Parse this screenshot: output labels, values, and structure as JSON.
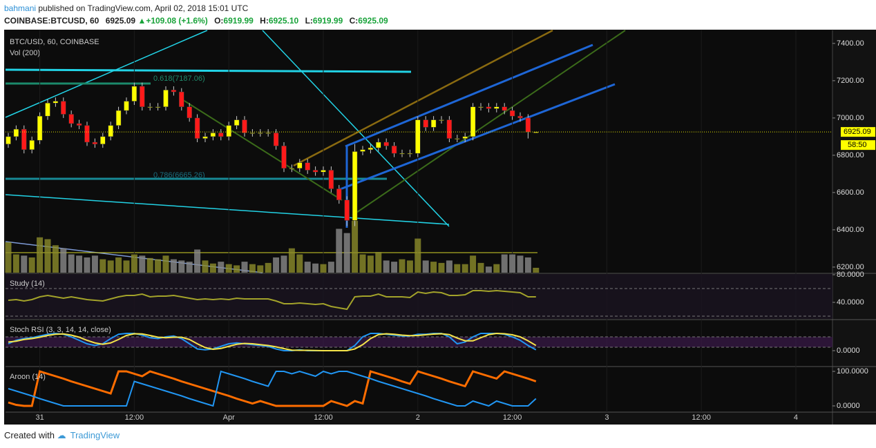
{
  "header": {
    "author": "bahmani",
    "published": "published on TradingView.com, April 02, 2018 15:01 UTC",
    "symbol": "COINBASE:BTCUSD, 60",
    "price": "6925.09",
    "change": "+109.08 (+1.6%)",
    "ohlc": [
      {
        "label": "O:",
        "value": "6919.99"
      },
      {
        "label": "H:",
        "value": "6925.10"
      },
      {
        "label": "L:",
        "value": "6919.99"
      },
      {
        "label": "C:",
        "value": "6925.09"
      }
    ]
  },
  "footer": {
    "created": "Created with",
    "brand": "TradingView"
  },
  "chart_data": [
    {
      "type": "candlestick",
      "title": "BTC/USD, 60, COINBASE",
      "volume_label": "Vol (200)",
      "up_color": "#ffff00",
      "down_color": "#ff1a1a",
      "volume_up_color": "#8c8c2a",
      "volume_down_color": "#8a8a8a",
      "last_price_label": "6925.09",
      "countdown": "58:50",
      "annotations": [
        "0.618(7187.06)",
        "0.786(6665.26)"
      ],
      "xlim": [
        -0.35,
        104.65
      ],
      "xticks": [
        {
          "value": 4,
          "label": "31"
        },
        {
          "value": 16,
          "label": "12:00"
        },
        {
          "value": 28,
          "label": "Apr"
        },
        {
          "value": 40,
          "label": "12:00"
        },
        {
          "value": 52,
          "label": "2"
        },
        {
          "value": 64,
          "label": "12:00"
        },
        {
          "value": 76,
          "label": "3"
        },
        {
          "value": 88,
          "label": "12:00"
        },
        {
          "value": 100,
          "label": "4"
        }
      ],
      "ylim": [
        6170,
        7470
      ],
      "yticks": [
        {
          "value": 6200,
          "label": "6200.00"
        },
        {
          "value": 6400,
          "label": "6400.00"
        },
        {
          "value": 6600,
          "label": "6600.00"
        },
        {
          "value": 6800,
          "label": "6800.00"
        },
        {
          "value": 7000,
          "label": "7000.00"
        },
        {
          "value": 7200,
          "label": "7200.00"
        },
        {
          "value": 7400,
          "label": "7400.00"
        }
      ],
      "open": [
        6860,
        6900,
        6940,
        6830,
        6880,
        7010,
        7080,
        7090,
        7020,
        6970,
        6960,
        6870,
        6860,
        6900,
        6960,
        7040,
        7090,
        7170,
        7060,
        7060,
        7060,
        7150,
        7140,
        7060,
        7000,
        6890,
        6900,
        6920,
        6900,
        6960,
        6990,
        6920,
        6920,
        6920,
        6920,
        6850,
        6730,
        6730,
        6760,
        6720,
        6710,
        6720,
        6620,
        6560,
        6450,
        6820,
        6830,
        6840,
        6870,
        6850,
        6810,
        6810,
        6810,
        6990,
        6950,
        6990,
        6990,
        6890,
        6890,
        6900,
        7060,
        7060,
        7050,
        7060,
        7040,
        7010,
        7000,
        6919.99
      ],
      "high": [
        6920,
        6960,
        6960,
        6900,
        7030,
        7100,
        7110,
        7110,
        7040,
        6990,
        6980,
        6890,
        6920,
        6980,
        7060,
        7110,
        7190,
        7190,
        7080,
        7080,
        7170,
        7170,
        7160,
        7080,
        7020,
        6920,
        6940,
        6940,
        6980,
        7010,
        7010,
        6940,
        6940,
        6940,
        6940,
        6870,
        6750,
        6780,
        6780,
        6740,
        6740,
        6740,
        6640,
        6580,
        6860,
        6850,
        6860,
        6890,
        6890,
        6870,
        6830,
        6830,
        7010,
        7010,
        7010,
        7010,
        7010,
        6910,
        6920,
        7080,
        7080,
        7080,
        7080,
        7080,
        7060,
        7030,
        7020,
        6925.1
      ],
      "low": [
        6840,
        6880,
        6810,
        6810,
        6860,
        6990,
        7060,
        7000,
        6950,
        6940,
        6850,
        6840,
        6840,
        6880,
        6940,
        7020,
        7070,
        7040,
        7040,
        7040,
        7040,
        7120,
        7040,
        6980,
        6870,
        6870,
        6880,
        6880,
        6880,
        6940,
        6900,
        6900,
        6900,
        6900,
        6830,
        6710,
        6710,
        6710,
        6700,
        6690,
        6690,
        6600,
        6540,
        6420,
        6420,
        6800,
        6810,
        6820,
        6830,
        6790,
        6790,
        6790,
        6790,
        6930,
        6930,
        6970,
        6870,
        6870,
        6870,
        6880,
        7040,
        7030,
        7030,
        7020,
        6990,
        6980,
        6890,
        6919.99
      ],
      "close": [
        6900,
        6940,
        6830,
        6880,
        7010,
        7080,
        7090,
        7020,
        6970,
        6960,
        6870,
        6860,
        6900,
        6960,
        7040,
        7090,
        7170,
        7060,
        7060,
        7060,
        7150,
        7140,
        7060,
        7000,
        6890,
        6900,
        6920,
        6900,
        6960,
        6990,
        6920,
        6920,
        6920,
        6920,
        6850,
        6730,
        6730,
        6760,
        6720,
        6710,
        6720,
        6620,
        6560,
        6450,
        6820,
        6830,
        6840,
        6870,
        6850,
        6810,
        6810,
        6810,
        6990,
        6950,
        6990,
        6990,
        6890,
        6890,
        6900,
        7060,
        7060,
        7050,
        7060,
        7040,
        7010,
        7000,
        6925,
        6925.09
      ],
      "volume": [
        50,
        30,
        28,
        25,
        58,
        55,
        45,
        40,
        30,
        28,
        25,
        28,
        22,
        20,
        25,
        20,
        30,
        28,
        24,
        22,
        28,
        22,
        20,
        18,
        38,
        20,
        15,
        18,
        14,
        12,
        18,
        14,
        12,
        16,
        25,
        28,
        40,
        30,
        18,
        15,
        14,
        18,
        72,
        65,
        85,
        30,
        28,
        34,
        20,
        18,
        22,
        20,
        56,
        20,
        18,
        16,
        20,
        14,
        14,
        28,
        16,
        10,
        14,
        30,
        30,
        28,
        25,
        8
      ]
    },
    {
      "type": "line",
      "title": "Study (14)",
      "ylim": [
        16,
        81
      ],
      "yticks": [
        {
          "value": 40,
          "label": "40.0000"
        },
        {
          "value": 80,
          "label": "80.0000"
        }
      ],
      "levels": [
        60,
        20
      ],
      "series": [
        {
          "color": "#a3a32a",
          "values": [
            43,
            44,
            42,
            44,
            48,
            50,
            48,
            46,
            48,
            46,
            44,
            43,
            42,
            45,
            48,
            50,
            50,
            52,
            48,
            49,
            49,
            50,
            48,
            46,
            44,
            45,
            44,
            45,
            44,
            46,
            45,
            45,
            45,
            45,
            42,
            38,
            38,
            39,
            38,
            37,
            38,
            34,
            32,
            30,
            48,
            49,
            49,
            52,
            48,
            48,
            48,
            47,
            55,
            53,
            55,
            54,
            50,
            50,
            51,
            57,
            57,
            56,
            57,
            56,
            55,
            54,
            48,
            48
          ]
        }
      ]
    },
    {
      "type": "line",
      "title": "Stoch RSI (3, 3, 14, 14, close)",
      "ylim": [
        -88,
        176
      ],
      "yticks": [
        {
          "value": 0,
          "label": "0.0000"
        }
      ],
      "levels": [
        80,
        20
      ],
      "series": [
        {
          "color": "#2196f3",
          "values": [
            40,
            60,
            70,
            75,
            85,
            95,
            100,
            95,
            80,
            60,
            40,
            30,
            40,
            70,
            95,
            100,
            100,
            90,
            75,
            70,
            80,
            85,
            70,
            40,
            10,
            5,
            10,
            25,
            40,
            45,
            40,
            35,
            30,
            25,
            10,
            0,
            0,
            5,
            0,
            0,
            0,
            0,
            0,
            0,
            30,
            80,
            100,
            100,
            95,
            90,
            85,
            85,
            95,
            95,
            100,
            100,
            80,
            40,
            50,
            80,
            100,
            100,
            100,
            95,
            80,
            60,
            30,
            5
          ]
        },
        {
          "color": "#f5e44a",
          "values": [
            50,
            55,
            65,
            70,
            78,
            88,
            95,
            97,
            90,
            78,
            60,
            45,
            37,
            45,
            65,
            88,
            98,
            97,
            88,
            78,
            75,
            78,
            78,
            65,
            40,
            18,
            8,
            13,
            25,
            37,
            42,
            40,
            35,
            30,
            22,
            12,
            3,
            2,
            2,
            1,
            0,
            0,
            0,
            0,
            10,
            35,
            70,
            93,
            98,
            95,
            90,
            87,
            88,
            92,
            96,
            98,
            93,
            73,
            57,
            57,
            75,
            93,
            100,
            98,
            92,
            80,
            57,
            30
          ]
        }
      ]
    },
    {
      "type": "line",
      "title": "Aroon (14)",
      "ylim": [
        -18,
        112
      ],
      "yticks": [
        {
          "value": 0,
          "label": "0.0000"
        },
        {
          "value": 100,
          "label": "100.0000"
        }
      ],
      "series": [
        {
          "color": "#ff6d00",
          "values": [
            10,
            3,
            0,
            0,
            100,
            93,
            86,
            79,
            71,
            64,
            57,
            50,
            43,
            36,
            100,
            100,
            93,
            86,
            100,
            93,
            86,
            79,
            71,
            64,
            57,
            50,
            43,
            36,
            29,
            21,
            14,
            7,
            14,
            7,
            0,
            0,
            0,
            0,
            0,
            0,
            0,
            14,
            7,
            0,
            14,
            7,
            100,
            93,
            86,
            79,
            71,
            64,
            100,
            93,
            86,
            79,
            71,
            64,
            57,
            100,
            93,
            86,
            79,
            100,
            93,
            86,
            79,
            71
          ]
        },
        {
          "color": "#2196f3",
          "values": [
            50,
            43,
            36,
            29,
            21,
            14,
            7,
            0,
            0,
            0,
            0,
            0,
            0,
            0,
            0,
            0,
            71,
            64,
            57,
            50,
            43,
            36,
            29,
            21,
            14,
            7,
            0,
            100,
            93,
            86,
            79,
            71,
            64,
            57,
            100,
            100,
            93,
            100,
            93,
            86,
            100,
            93,
            100,
            100,
            93,
            86,
            79,
            71,
            64,
            57,
            50,
            43,
            36,
            29,
            21,
            14,
            7,
            0,
            0,
            14,
            7,
            0,
            14,
            7,
            0,
            0,
            0,
            21
          ]
        }
      ]
    }
  ]
}
